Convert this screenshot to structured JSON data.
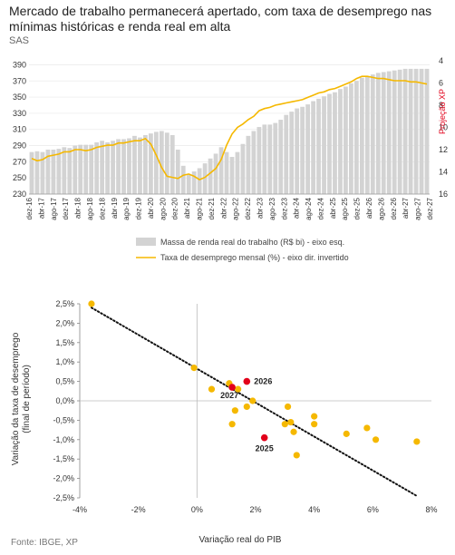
{
  "title": "Mercado de trabalho permanecerá apertado, com taxa de desemprego nas mínimas históricas e renda real em alta",
  "subtitle": "SAS",
  "source": "Fonte: IBGE, XP",
  "colors": {
    "bars": "#d3d3d3",
    "line": "#f5b800",
    "dots": "#f5b800",
    "highlight": "#e2001a",
    "projection": "#e2001a"
  },
  "chart_data": [
    {
      "type": "bar",
      "secondary_type": "line",
      "projection_label": "Projeção XP",
      "x_tick_labels": [
        "dez-16",
        "abr-17",
        "ago-17",
        "dez-17",
        "abr-18",
        "ago-18",
        "dez-18",
        "abr-19",
        "ago-19",
        "dez-19",
        "abr-20",
        "ago-20",
        "dez-20",
        "abr-21",
        "ago-21",
        "dez-21",
        "abr-22",
        "ago-22",
        "dez-22",
        "abr-23",
        "ago-23",
        "dez-23",
        "abr-24",
        "ago-24",
        "dez-24",
        "abr-25",
        "ago-25",
        "dez-25",
        "abr-26",
        "ago-26",
        "dez-26",
        "abr-27",
        "ago-27",
        "dez-27"
      ],
      "y_left": {
        "ticks": [
          "230",
          "250",
          "270",
          "290",
          "310",
          "330",
          "350",
          "370",
          "390"
        ],
        "range": [
          230,
          395
        ]
      },
      "y_right": {
        "ticks": [
          "4",
          "6",
          "8",
          "10",
          "12",
          "14",
          "16"
        ],
        "range": [
          4,
          16
        ],
        "inverted": true
      },
      "series": [
        {
          "name": "Massa de renda real do trabalho (R$ bi) - eixo esq.",
          "kind": "bar",
          "values": [
            282,
            283,
            282,
            285,
            285,
            286,
            288,
            287,
            290,
            291,
            291,
            291,
            294,
            296,
            294,
            296,
            298,
            298,
            299,
            302,
            300,
            303,
            305,
            307,
            308,
            306,
            303,
            285,
            265,
            255,
            258,
            262,
            268,
            274,
            280,
            288,
            282,
            276,
            282,
            292,
            302,
            308,
            313,
            316,
            316,
            318,
            322,
            328,
            332,
            336,
            338,
            341,
            345,
            348,
            351,
            354,
            356,
            360,
            363,
            367,
            370,
            374,
            376,
            378,
            380,
            381,
            382,
            383,
            384,
            385,
            385,
            385,
            385,
            385
          ]
        },
        {
          "name": "Taxa de desemprego mensal (%) - eixo dir. invertido",
          "kind": "line",
          "values": [
            12.8,
            13.0,
            12.9,
            12.6,
            12.5,
            12.4,
            12.2,
            12.2,
            12.0,
            12.0,
            12.1,
            12.0,
            11.8,
            11.7,
            11.6,
            11.6,
            11.4,
            11.4,
            11.3,
            11.2,
            11.2,
            11.0,
            11.5,
            12.5,
            13.6,
            14.4,
            14.5,
            14.6,
            14.3,
            14.2,
            14.4,
            14.7,
            14.5,
            14.1,
            13.7,
            12.9,
            11.6,
            10.6,
            10.0,
            9.7,
            9.3,
            9.0,
            8.5,
            8.3,
            8.2,
            8.0,
            7.9,
            7.8,
            7.7,
            7.6,
            7.5,
            7.3,
            7.1,
            6.9,
            6.8,
            6.6,
            6.5,
            6.3,
            6.1,
            5.9,
            5.6,
            5.4,
            5.4,
            5.5,
            5.6,
            5.6,
            5.7,
            5.8,
            5.8,
            5.8,
            5.9,
            5.9,
            6.0,
            6.1
          ]
        }
      ]
    },
    {
      "type": "scatter",
      "xlabel": "Variação real do PIB",
      "ylabel": "Variação da taxa de desemprego (final de período)",
      "x_ticks": [
        "-4%",
        "-2%",
        "0%",
        "2%",
        "4%",
        "6%",
        "8%"
      ],
      "y_ticks": [
        "2,5%",
        "2,0%",
        "1,5%",
        "1,0%",
        "0,5%",
        "0,0%",
        "-0,5%",
        "-1,0%",
        "-1,5%",
        "-2,0%",
        "-2,5%"
      ],
      "xlim": [
        -4,
        8
      ],
      "ylim": [
        -2.5,
        2.5
      ],
      "trendline": {
        "style": "dotted",
        "from": [
          -3.6,
          2.4
        ],
        "to": [
          7.5,
          -2.45
        ]
      },
      "points": [
        {
          "x": -3.6,
          "y": 2.5
        },
        {
          "x": -0.1,
          "y": 0.85
        },
        {
          "x": 0.5,
          "y": 0.3
        },
        {
          "x": 1.1,
          "y": 0.45
        },
        {
          "x": 1.4,
          "y": 0.3
        },
        {
          "x": 1.7,
          "y": -0.15
        },
        {
          "x": 1.9,
          "y": 0.0
        },
        {
          "x": 1.3,
          "y": -0.25
        },
        {
          "x": 1.2,
          "y": -0.6
        },
        {
          "x": 3.0,
          "y": -0.6
        },
        {
          "x": 3.2,
          "y": -0.55
        },
        {
          "x": 3.1,
          "y": -0.15
        },
        {
          "x": 4.0,
          "y": -0.4
        },
        {
          "x": 4.0,
          "y": -0.6
        },
        {
          "x": 3.3,
          "y": -0.8
        },
        {
          "x": 5.1,
          "y": -0.85
        },
        {
          "x": 5.8,
          "y": -0.7
        },
        {
          "x": 6.1,
          "y": -1.0
        },
        {
          "x": 7.5,
          "y": -1.05
        },
        {
          "x": 3.4,
          "y": -1.4
        }
      ],
      "highlighted": [
        {
          "label": "2026",
          "x": 1.7,
          "y": 0.5
        },
        {
          "label": "2027",
          "x": 1.2,
          "y": 0.35
        },
        {
          "label": "2025",
          "x": 2.3,
          "y": -0.95
        }
      ]
    }
  ]
}
